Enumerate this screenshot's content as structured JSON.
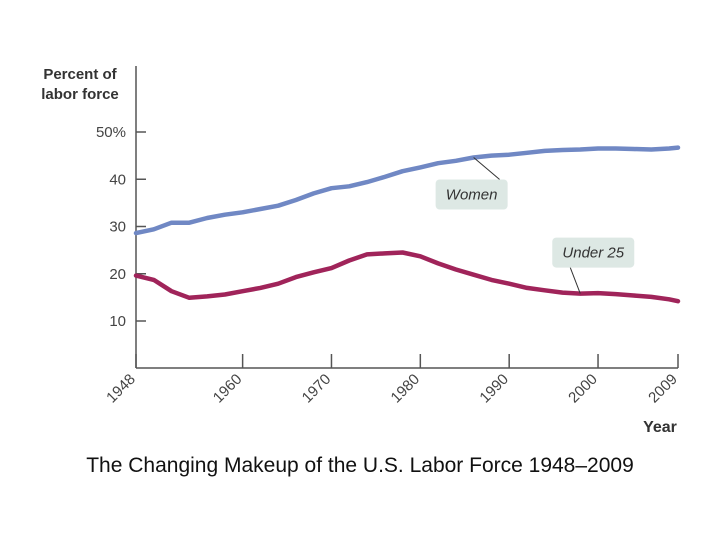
{
  "caption": "The Changing Makeup of the U.S. Labor Force 1948–2009",
  "chart_data": {
    "type": "line",
    "title": "",
    "ylabel_line1": "Percent of",
    "ylabel_line2": "labor force",
    "xlabel": "Year",
    "xlim": [
      1948,
      2009
    ],
    "ylim": [
      0,
      50
    ],
    "grid": false,
    "x_ticks": [
      {
        "value": 1948,
        "label": "1948"
      },
      {
        "value": 1960,
        "label": "1960"
      },
      {
        "value": 1970,
        "label": "1970"
      },
      {
        "value": 1980,
        "label": "1980"
      },
      {
        "value": 1990,
        "label": "1990"
      },
      {
        "value": 2000,
        "label": "2000"
      },
      {
        "value": 2009,
        "label": "2009"
      }
    ],
    "y_ticks": [
      {
        "value": 10,
        "label": "10"
      },
      {
        "value": 20,
        "label": "20"
      },
      {
        "value": 30,
        "label": "30"
      },
      {
        "value": 40,
        "label": "40"
      },
      {
        "value": 50,
        "label": "50%"
      }
    ],
    "series": [
      {
        "name": "Women",
        "color": "#7088c4",
        "x": [
          1948,
          1950,
          1952,
          1954,
          1956,
          1958,
          1960,
          1962,
          1964,
          1966,
          1968,
          1970,
          1972,
          1974,
          1976,
          1978,
          1980,
          1982,
          1984,
          1986,
          1988,
          1990,
          1992,
          1994,
          1996,
          1998,
          2000,
          2002,
          2004,
          2006,
          2008,
          2009
        ],
        "values": [
          28.6,
          29.4,
          30.8,
          30.8,
          31.8,
          32.5,
          33.0,
          33.7,
          34.4,
          35.6,
          37.0,
          38.1,
          38.5,
          39.4,
          40.5,
          41.7,
          42.5,
          43.4,
          43.9,
          44.6,
          45.0,
          45.2,
          45.6,
          46.0,
          46.2,
          46.3,
          46.5,
          46.5,
          46.4,
          46.3,
          46.5,
          46.7
        ],
        "label_box": {
          "text": "Women",
          "anchor_year": 1986
        }
      },
      {
        "name": "Under 25",
        "color": "#a0245a",
        "x": [
          1948,
          1950,
          1952,
          1954,
          1956,
          1958,
          1960,
          1962,
          1964,
          1966,
          1968,
          1970,
          1972,
          1974,
          1976,
          1978,
          1980,
          1982,
          1984,
          1986,
          1988,
          1990,
          1992,
          1994,
          1996,
          1998,
          2000,
          2002,
          2004,
          2006,
          2008,
          2009
        ],
        "values": [
          19.6,
          18.7,
          16.3,
          14.9,
          15.2,
          15.6,
          16.3,
          17.0,
          17.9,
          19.3,
          20.3,
          21.2,
          22.8,
          24.1,
          24.3,
          24.5,
          23.7,
          22.2,
          20.9,
          19.8,
          18.7,
          17.9,
          17.0,
          16.5,
          16.0,
          15.8,
          15.9,
          15.7,
          15.4,
          15.1,
          14.6,
          14.2
        ],
        "label_box": {
          "text": "Under 25",
          "anchor_year": 1998
        }
      }
    ]
  }
}
